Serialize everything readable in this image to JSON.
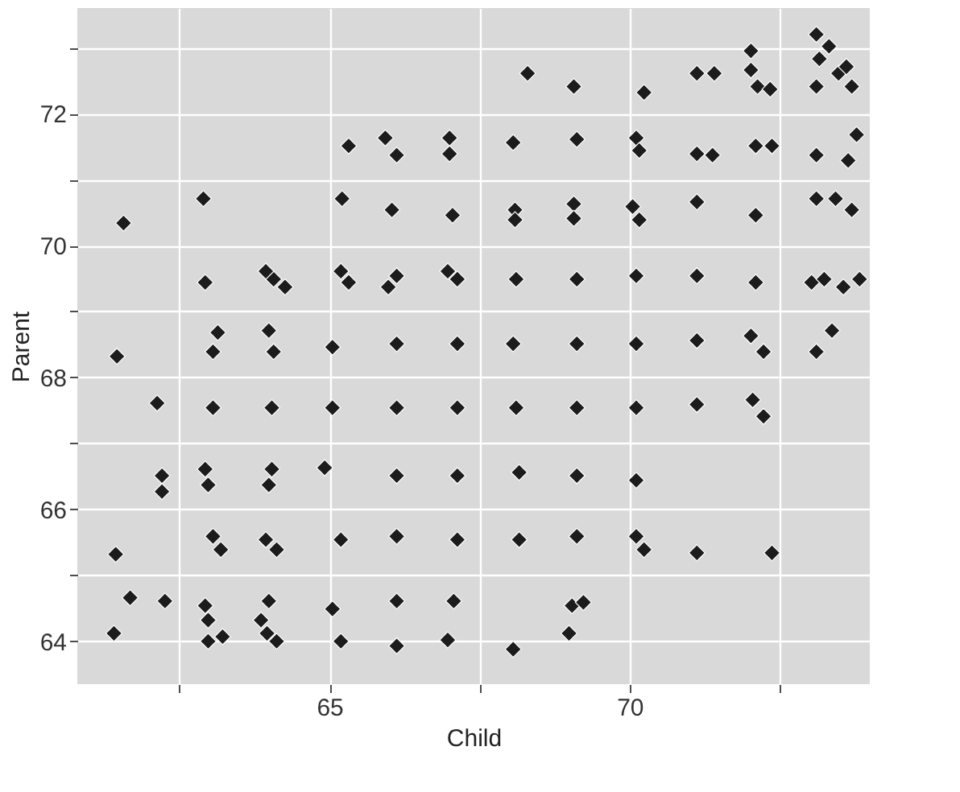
{
  "chart_data": {
    "type": "scatter",
    "xlabel": "Child",
    "ylabel": "Parent",
    "x": [
      73.11,
      73.32,
      73.16,
      68.3,
      69.07,
      70.24,
      71.12,
      71.41,
      72.02,
      72.02,
      72.13,
      72.34,
      73.11,
      73.48,
      73.7,
      73.61,
      65.32,
      65.93,
      66.12,
      67.0,
      67.0,
      68.06,
      69.12,
      70.11,
      70.16,
      71.12,
      71.38,
      72.1,
      72.37,
      73.11,
      73.78,
      73.64,
      61.57,
      62.9,
      65.21,
      66.04,
      67.05,
      68.09,
      68.09,
      69.07,
      69.07,
      70.05,
      70.16,
      71.12,
      72.1,
      73.11,
      73.43,
      73.7,
      62.93,
      64.07,
      63.94,
      64.26,
      65.19,
      65.32,
      66.12,
      65.98,
      67.13,
      66.97,
      68.11,
      69.12,
      70.11,
      71.12,
      72.1,
      73.03,
      73.24,
      73.56,
      73.83,
      61.46,
      63.14,
      63.06,
      63.99,
      64.07,
      65.05,
      66.12,
      67.13,
      68.06,
      69.12,
      70.11,
      71.12,
      72.02,
      72.23,
      73.11,
      73.37,
      62.13,
      63.06,
      64.04,
      65.05,
      66.12,
      67.13,
      68.11,
      69.12,
      70.11,
      71.12,
      72.05,
      72.23,
      62.21,
      62.21,
      62.93,
      62.98,
      64.04,
      63.99,
      64.92,
      66.12,
      67.13,
      68.16,
      69.12,
      70.11,
      61.44,
      63.06,
      63.19,
      63.94,
      64.12,
      65.19,
      66.12,
      67.13,
      68.16,
      69.12,
      70.11,
      70.24,
      71.12,
      72.37,
      61.68,
      62.26,
      62.93,
      62.98,
      63.99,
      63.86,
      65.05,
      66.12,
      67.07,
      69.04,
      69.23,
      61.41,
      62.98,
      63.22,
      63.96,
      64.12,
      65.19,
      66.12,
      66.97,
      68.06,
      68.99
    ],
    "values": [
      73.2,
      73.02,
      72.83,
      72.61,
      72.41,
      72.32,
      72.61,
      72.61,
      72.95,
      72.66,
      72.41,
      72.37,
      72.41,
      72.61,
      72.41,
      72.71,
      71.51,
      71.63,
      71.37,
      71.63,
      71.39,
      71.56,
      71.61,
      71.63,
      71.44,
      71.39,
      71.37,
      71.51,
      71.51,
      71.37,
      71.68,
      71.29,
      70.34,
      70.71,
      70.71,
      70.54,
      70.46,
      70.54,
      70.39,
      70.63,
      70.41,
      70.59,
      70.39,
      70.66,
      70.46,
      70.71,
      70.71,
      70.54,
      69.44,
      69.49,
      69.61,
      69.37,
      69.61,
      69.44,
      69.54,
      69.37,
      69.49,
      69.61,
      69.49,
      69.49,
      69.54,
      69.54,
      69.44,
      69.44,
      69.49,
      69.37,
      69.49,
      68.32,
      68.68,
      68.39,
      68.71,
      68.39,
      68.46,
      68.51,
      68.51,
      68.51,
      68.51,
      68.51,
      68.56,
      68.63,
      68.39,
      68.39,
      68.71,
      67.61,
      67.54,
      67.54,
      67.54,
      67.54,
      67.54,
      67.54,
      67.54,
      67.54,
      67.59,
      67.66,
      67.41,
      66.51,
      66.27,
      66.61,
      66.37,
      66.61,
      66.37,
      66.63,
      66.51,
      66.51,
      66.56,
      66.51,
      66.44,
      65.32,
      65.59,
      65.39,
      65.54,
      65.39,
      65.54,
      65.59,
      65.54,
      65.54,
      65.59,
      65.59,
      65.39,
      65.34,
      65.34,
      64.66,
      64.61,
      64.54,
      64.32,
      64.61,
      64.32,
      64.49,
      64.61,
      64.61,
      64.54,
      64.59,
      64.12,
      64.0,
      64.07,
      64.12,
      64.0,
      64.0,
      63.93,
      64.02,
      63.88,
      64.12
    ],
    "color": "#1c1c1c",
    "marker": "diamond",
    "xlim": [
      60.8,
      74.0
    ],
    "ylim": [
      63.35,
      73.6
    ],
    "xticks": [
      {
        "value": 62.5,
        "label": null
      },
      65,
      {
        "value": 67.5,
        "label": null
      },
      70,
      {
        "value": 72.5,
        "label": null
      }
    ],
    "yticks": [
      64,
      {
        "value": 65,
        "label": null
      },
      66,
      {
        "value": 67,
        "label": null
      },
      68,
      {
        "value": 69,
        "label": null
      },
      70,
      {
        "value": 71,
        "label": null
      },
      72,
      {
        "value": 73,
        "label": null
      }
    ],
    "grid": true
  }
}
